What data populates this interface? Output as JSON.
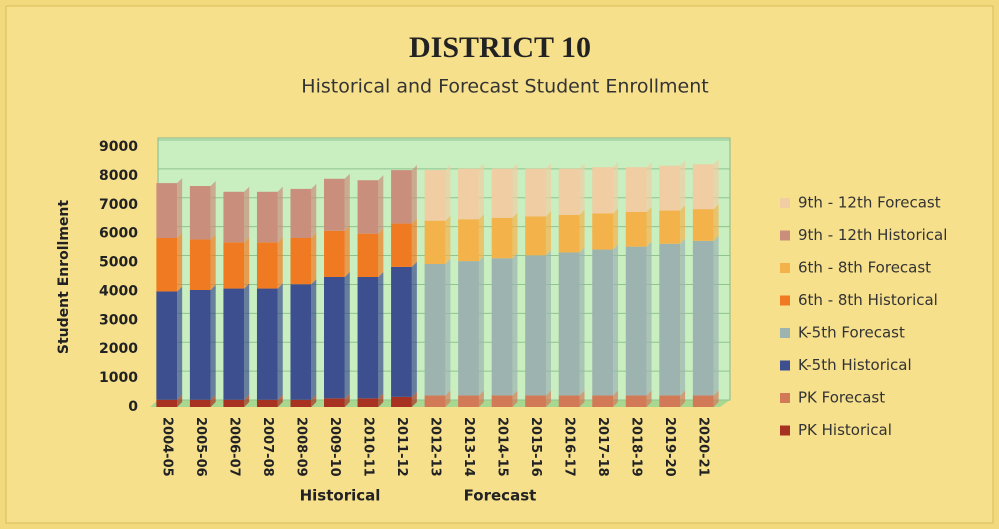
{
  "chart_data": {
    "type": "stacked_bar",
    "title": "DISTRICT 10",
    "subtitle": "Historical and Forecast Student Enrollment",
    "y_label": "Student Enrollment",
    "annotations": [
      "Historical",
      "Forecast"
    ],
    "categories": [
      "2004-05",
      "2005-06",
      "2006-07",
      "2007-08",
      "2008-09",
      "2009-10",
      "2010-11",
      "2011-12",
      "2012-13",
      "2013-14",
      "2014-15",
      "2015-16",
      "2016-17",
      "2017-18",
      "2018-19",
      "2019-20",
      "2020-21"
    ],
    "series": [
      {
        "name": "PK Historical",
        "color": "#a83222",
        "values": [
          250,
          250,
          250,
          250,
          250,
          300,
          300,
          350,
          null,
          null,
          null,
          null,
          null,
          null,
          null,
          null,
          null
        ]
      },
      {
        "name": "PK Forecast",
        "color": "#d27a58",
        "values": [
          null,
          null,
          null,
          null,
          null,
          null,
          null,
          null,
          400,
          400,
          400,
          400,
          400,
          400,
          400,
          400,
          400
        ]
      },
      {
        "name": "K-5th Historical",
        "color": "#3d4f8e",
        "values": [
          3750,
          3800,
          3850,
          3850,
          4000,
          4200,
          4200,
          4500,
          null,
          null,
          null,
          null,
          null,
          null,
          null,
          null,
          null
        ]
      },
      {
        "name": "K-5th Forecast",
        "color": "#9db3b0",
        "values": [
          null,
          null,
          null,
          null,
          null,
          null,
          null,
          null,
          4550,
          4650,
          4750,
          4850,
          4950,
          5050,
          5150,
          5250,
          5350
        ]
      },
      {
        "name": "6th - 8th Historical",
        "color": "#f07a22",
        "values": [
          1850,
          1750,
          1600,
          1600,
          1600,
          1600,
          1500,
          1500,
          null,
          null,
          null,
          null,
          null,
          null,
          null,
          null,
          null
        ]
      },
      {
        "name": "6th - 8th Forecast",
        "color": "#f4b24a",
        "values": [
          null,
          null,
          null,
          null,
          null,
          null,
          null,
          null,
          1500,
          1450,
          1400,
          1350,
          1300,
          1250,
          1200,
          1150,
          1100
        ]
      },
      {
        "name": "9th - 12th Historical",
        "color": "#c98f7c",
        "values": [
          1900,
          1850,
          1750,
          1750,
          1700,
          1800,
          1850,
          1850,
          null,
          null,
          null,
          null,
          null,
          null,
          null,
          null,
          null
        ]
      },
      {
        "name": "9th - 12th Forecast",
        "color": "#f0cda2",
        "values": [
          null,
          null,
          null,
          null,
          null,
          null,
          null,
          null,
          1750,
          1750,
          1700,
          1650,
          1600,
          1600,
          1550,
          1550,
          1550
        ]
      }
    ],
    "ylim": [
      0,
      9000
    ],
    "yticks": [
      0,
      1000,
      2000,
      3000,
      4000,
      5000,
      6000,
      7000,
      8000,
      9000
    ],
    "grid": true
  }
}
